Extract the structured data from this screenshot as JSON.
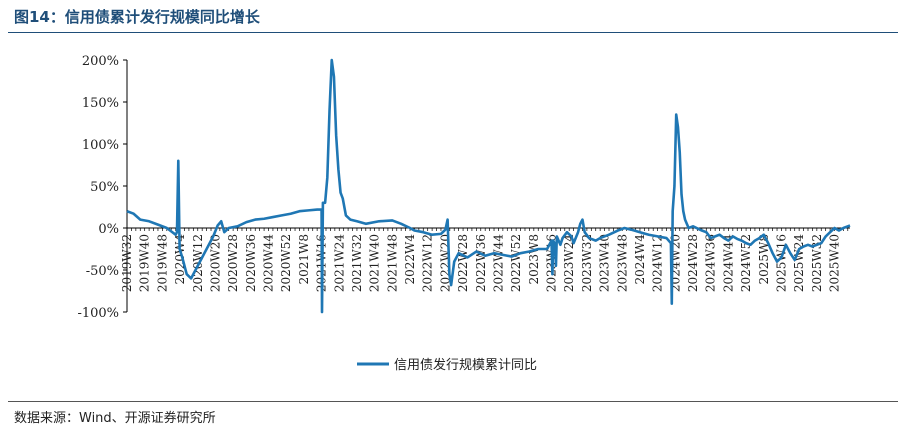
{
  "header": {
    "title": "图14：信用债累计发行规模同比增长"
  },
  "footer": {
    "source": "数据来源：Wind、开源证券研究所"
  },
  "colors": {
    "series": "#1f77b4",
    "zero_line": "#000000",
    "title": "#1f4e79"
  },
  "chart_data": {
    "type": "line",
    "title": "图14：信用债累计发行规模同比增长",
    "xlabel": "",
    "ylabel": "",
    "ylim": [
      -100,
      200
    ],
    "y_ticks": [
      "200%",
      "150%",
      "100%",
      "50%",
      "0%",
      "-50%",
      "-100%"
    ],
    "y_tick_values": [
      200,
      150,
      100,
      50,
      0,
      -50,
      -100
    ],
    "x_tick_labels": [
      "2019W32",
      "2019W40",
      "2019W48",
      "2020W4",
      "2020W12",
      "2020W20",
      "2020W28",
      "2020W36",
      "2020W44",
      "2020W52",
      "2021W8",
      "2021W16",
      "2021W24",
      "2021W32",
      "2021W40",
      "2021W48",
      "2022W4",
      "2022W12",
      "2022W20",
      "2022W28",
      "2022W36",
      "2022W44",
      "2022W52",
      "2023W8",
      "2023W16",
      "2023W24",
      "2023W32",
      "2023W40",
      "2023W48",
      "2024W4",
      "2024W12",
      "2024W20",
      "2024W28",
      "2024W36",
      "2024W44",
      "2024W52",
      "2025W8",
      "2025W16",
      "2025W24",
      "2025W32",
      "2025W40"
    ],
    "grid": false,
    "legend": "bottom-center",
    "series": [
      {
        "name": "信用债发行规模累计同比",
        "points": [
          [
            0,
            20
          ],
          [
            1.5,
            17
          ],
          [
            3,
            10
          ],
          [
            5,
            8
          ],
          [
            7,
            4
          ],
          [
            9,
            0
          ],
          [
            10,
            -4
          ],
          [
            11,
            -8
          ],
          [
            11.3,
            -5
          ],
          [
            11.6,
            80
          ],
          [
            11.9,
            -25
          ],
          [
            12.5,
            -35
          ],
          [
            13.5,
            -55
          ],
          [
            14.5,
            -60
          ],
          [
            15.5,
            -50
          ],
          [
            16.5,
            -40
          ],
          [
            18,
            -25
          ],
          [
            19.5,
            -10
          ],
          [
            20.5,
            3
          ],
          [
            21.3,
            8
          ],
          [
            22,
            -5
          ],
          [
            23,
            0
          ],
          [
            25,
            2
          ],
          [
            27,
            7
          ],
          [
            29,
            10
          ],
          [
            31,
            11
          ],
          [
            33,
            13
          ],
          [
            35,
            15
          ],
          [
            37,
            17
          ],
          [
            39,
            20
          ],
          [
            41,
            21
          ],
          [
            43,
            22
          ],
          [
            43.7,
            22
          ],
          [
            44,
            22
          ],
          [
            44.1,
            -100
          ],
          [
            44.3,
            30
          ],
          [
            44.8,
            30
          ],
          [
            45.3,
            60
          ],
          [
            45.8,
            140
          ],
          [
            46.3,
            200
          ],
          [
            46.8,
            180
          ],
          [
            47.3,
            110
          ],
          [
            47.8,
            70
          ],
          [
            48.3,
            42
          ],
          [
            48.8,
            35
          ],
          [
            49.5,
            15
          ],
          [
            50.5,
            10
          ],
          [
            52,
            8
          ],
          [
            54,
            5
          ],
          [
            57,
            8
          ],
          [
            60,
            9
          ],
          [
            62,
            5
          ],
          [
            64,
            0
          ],
          [
            65,
            -3
          ],
          [
            67,
            -5
          ],
          [
            69,
            -8
          ],
          [
            71,
            -7
          ],
          [
            72,
            -2
          ],
          [
            72.5,
            10
          ],
          [
            72.9,
            -55
          ],
          [
            73.3,
            -68
          ],
          [
            74,
            -40
          ],
          [
            75,
            -30
          ],
          [
            77,
            -35
          ],
          [
            79,
            -28
          ],
          [
            81,
            -33
          ],
          [
            83,
            -30
          ],
          [
            85,
            -32
          ],
          [
            87,
            -34
          ],
          [
            89,
            -30
          ],
          [
            91,
            -28
          ],
          [
            93,
            -25
          ],
          [
            95,
            -25
          ],
          [
            96,
            -15
          ],
          [
            96.2,
            -55
          ],
          [
            96.4,
            -15
          ],
          [
            96.8,
            -20
          ],
          [
            97,
            -45
          ],
          [
            97.2,
            -10
          ],
          [
            98,
            -20
          ],
          [
            98.5,
            -12
          ],
          [
            99.5,
            -5
          ],
          [
            100.5,
            -10
          ],
          [
            101,
            -18
          ],
          [
            102,
            -5
          ],
          [
            102.5,
            5
          ],
          [
            103,
            10
          ],
          [
            103.5,
            -5
          ],
          [
            104.5,
            -12
          ],
          [
            106,
            -15
          ],
          [
            107,
            -12
          ],
          [
            109,
            -8
          ],
          [
            111,
            -3
          ],
          [
            112.5,
            0
          ],
          [
            114,
            -2
          ],
          [
            116,
            -5
          ],
          [
            118,
            -8
          ],
          [
            120,
            -10
          ],
          [
            122,
            -12
          ],
          [
            123,
            -18
          ],
          [
            123.2,
            -90
          ],
          [
            123.4,
            20
          ],
          [
            123.8,
            50
          ],
          [
            124.2,
            135
          ],
          [
            124.6,
            120
          ],
          [
            125,
            90
          ],
          [
            125.4,
            40
          ],
          [
            125.8,
            20
          ],
          [
            126.2,
            10
          ],
          [
            127,
            0
          ],
          [
            128,
            2
          ],
          [
            130,
            -3
          ],
          [
            131,
            -5
          ],
          [
            132,
            -12
          ],
          [
            133,
            -10
          ],
          [
            134,
            -8
          ],
          [
            135,
            -12
          ],
          [
            136,
            -15
          ],
          [
            137,
            -10
          ],
          [
            138,
            -13
          ],
          [
            139,
            -15
          ],
          [
            140,
            -18
          ],
          [
            141,
            -20
          ],
          [
            142,
            -15
          ],
          [
            143,
            -12
          ],
          [
            144,
            -8
          ],
          [
            145,
            -18
          ],
          [
            146,
            -30
          ],
          [
            147,
            -40
          ],
          [
            148,
            -35
          ],
          [
            149,
            -20
          ],
          [
            150,
            -30
          ],
          [
            151,
            -38
          ],
          [
            152,
            -25
          ],
          [
            153,
            -22
          ],
          [
            154,
            -20
          ],
          [
            155,
            -22
          ],
          [
            156,
            -20
          ],
          [
            157,
            -18
          ],
          [
            158,
            -10
          ],
          [
            159,
            -5
          ],
          [
            160,
            0
          ],
          [
            161,
            -3
          ],
          [
            162,
            0
          ],
          [
            163,
            2
          ],
          [
            163.5,
            3
          ]
        ]
      }
    ]
  }
}
